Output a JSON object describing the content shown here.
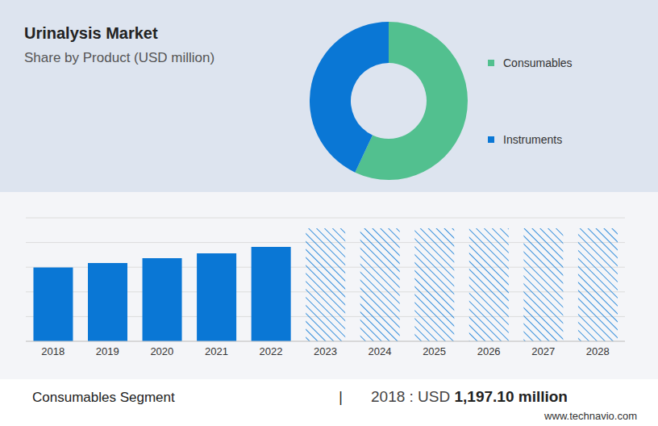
{
  "chart_data": [
    {
      "type": "pie",
      "title": "Urinalysis Market",
      "subtitle": "Share by Product (USD million)",
      "categories": [
        "Consumables",
        "Instruments"
      ],
      "values": [
        57,
        43
      ],
      "colors": [
        "#52c08f",
        "#0a77d5"
      ],
      "legend": "right"
    },
    {
      "type": "bar",
      "categories": [
        "2018",
        "2019",
        "2020",
        "2021",
        "2022",
        "2023",
        "2024",
        "2025",
        "2026",
        "2027",
        "2028"
      ],
      "values": [
        1197.1,
        1268,
        1346,
        1425,
        1529,
        1830,
        1830,
        1830,
        1830,
        1830,
        1830
      ],
      "colors": [
        "#0a77d5",
        "#0a77d5",
        "#0a77d5",
        "#0a77d5",
        "#0a77d5",
        "url(#hatch)",
        "url(#hatch)",
        "url(#hatch)",
        "url(#hatch)",
        "url(#hatch)",
        "url(#hatch)"
      ],
      "ylim": [
        0,
        2000
      ],
      "yticks": [
        0,
        200,
        400,
        600,
        800,
        1000,
        1200,
        1400,
        1600,
        1800,
        2000
      ],
      "grid": true,
      "tick_labels": "x"
    }
  ],
  "footer": {
    "segment": "Consumables Segment",
    "separator": "|",
    "prefix": "2018 : USD",
    "value": "1,197.10 million"
  },
  "source": "www.technavio.com"
}
